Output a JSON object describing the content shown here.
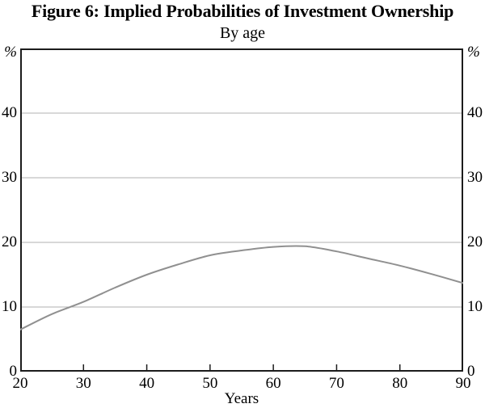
{
  "chart_data": {
    "type": "line",
    "title": "Figure 6: Implied Probabilities of Investment Ownership",
    "subtitle": "By age",
    "xlabel": "Years",
    "y_unit": "%",
    "xlim": [
      20,
      90
    ],
    "ylim": [
      0,
      50
    ],
    "x_ticks": [
      20,
      30,
      40,
      50,
      60,
      70,
      80,
      90
    ],
    "y_ticks": [
      0,
      10,
      20,
      30,
      40
    ],
    "y_axis_sides": "both",
    "grid": "horizontal",
    "legend": "none",
    "series": [
      {
        "points": [
          [
            20,
            6.5
          ],
          [
            25,
            8.9
          ],
          [
            30,
            10.8
          ],
          [
            35,
            13.0
          ],
          [
            40,
            15.0
          ],
          [
            45,
            16.6
          ],
          [
            50,
            18.0
          ],
          [
            55,
            18.75
          ],
          [
            60,
            19.3
          ],
          [
            65,
            19.4
          ],
          [
            70,
            18.6
          ],
          [
            75,
            17.5
          ],
          [
            80,
            16.4
          ],
          [
            85,
            15.1
          ],
          [
            90,
            13.7
          ]
        ],
        "color": "#909090"
      }
    ]
  },
  "colors": {
    "background": "#ffffff",
    "frame": "#1c1c1c",
    "gridline": "#b0b0b0",
    "line": "#909090",
    "text": "#000000"
  }
}
